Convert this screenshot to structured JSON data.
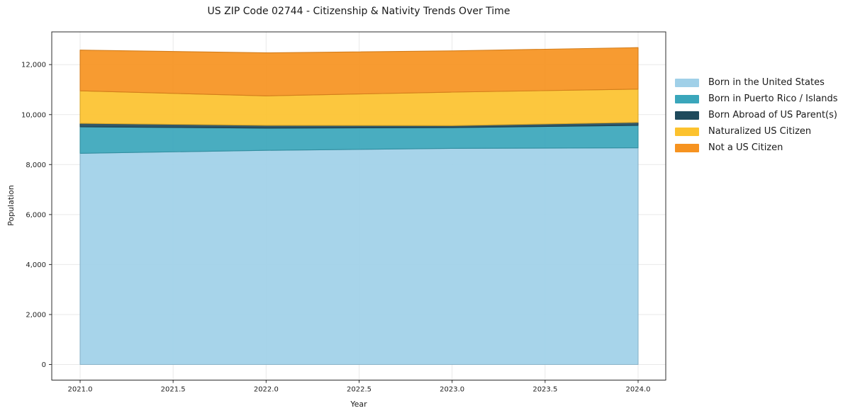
{
  "chart_data": {
    "type": "area",
    "stacked": true,
    "title": "US ZIP Code 02744 - Citizenship & Nativity Trends Over Time",
    "xlabel": "Year",
    "ylabel": "Population",
    "x": [
      2021,
      2022,
      2023,
      2024
    ],
    "series": [
      {
        "name": "Born in the United States",
        "color": "#a0d0e8",
        "values": [
          8450,
          8570,
          8650,
          8670
        ]
      },
      {
        "name": "Born in Puerto Rico / Islands",
        "color": "#3aa6bb",
        "values": [
          1060,
          890,
          830,
          900
        ]
      },
      {
        "name": "Born Abroad of US Parent(s)",
        "color": "#1f4a5c",
        "values": [
          140,
          110,
          80,
          120
        ]
      },
      {
        "name": "Naturalized US Citizen",
        "color": "#fcc22e",
        "values": [
          1300,
          1180,
          1340,
          1330
        ]
      },
      {
        "name": "Not a US Citizen",
        "color": "#f69320",
        "values": [
          1630,
          1720,
          1650,
          1660
        ]
      }
    ],
    "totals": [
      12580,
      12470,
      12550,
      12680
    ],
    "x_ticks": {
      "values": [
        2021,
        2021.5,
        2022,
        2022.5,
        2023,
        2023.5,
        2024
      ],
      "labels": [
        "2021.0",
        "2021.5",
        "2022.0",
        "2022.5",
        "2023.0",
        "2023.5",
        "2024.0"
      ]
    },
    "y_ticks": {
      "values": [
        0,
        2000,
        4000,
        6000,
        8000,
        10000,
        12000
      ],
      "labels": [
        "0",
        "2,000",
        "4,000",
        "6,000",
        "8,000",
        "10,000",
        "12,000"
      ]
    },
    "xlim": [
      2020.85,
      2024.15
    ],
    "ylim": [
      -630,
      13310
    ],
    "grid": true,
    "legend_position": "right",
    "fill_opacity": 0.92,
    "colors": {
      "grid": "#e9e9e9",
      "spine": "#2d2d2d",
      "text": "#1f1f1f",
      "background": "#ffffff"
    }
  }
}
